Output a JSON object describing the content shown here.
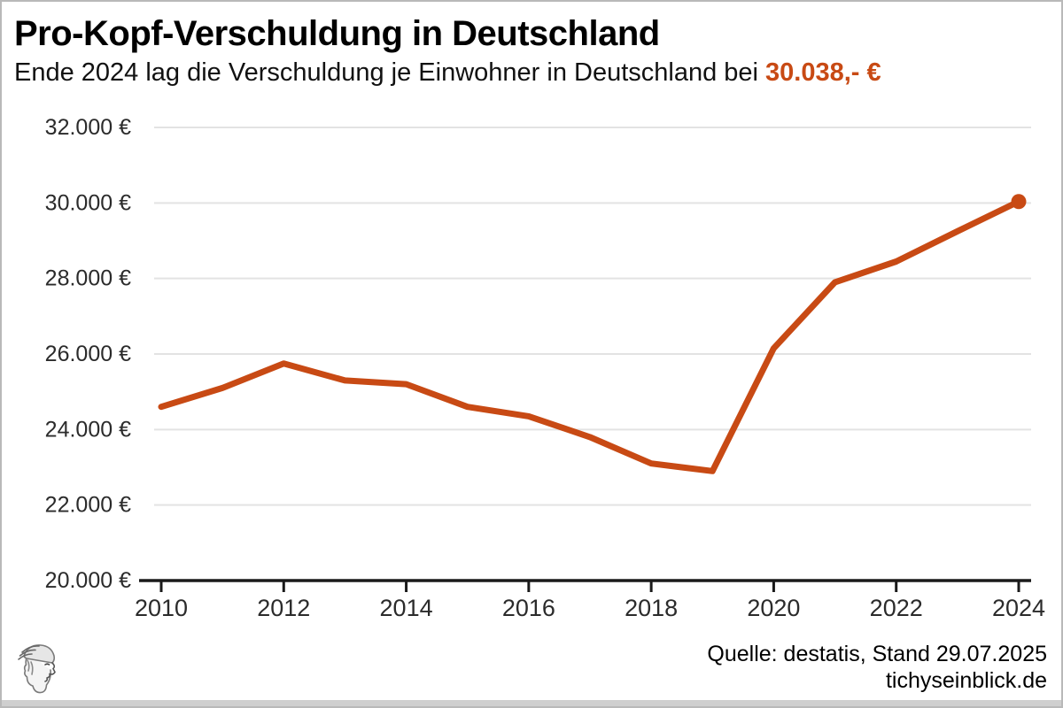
{
  "header": {
    "title": "Pro-Kopf-Verschuldung in Deutschland",
    "subtitle_prefix": "Ende 2024 lag die Verschuldung je Einwohner in Deutschland bei ",
    "subtitle_highlight": "30.038,- €"
  },
  "footer": {
    "source_line": "Quelle: destatis, Stand 29.07.2025",
    "site_line": "tichyseinblick.de",
    "logo": "hermes-head-engraving"
  },
  "colors": {
    "accent": "#c84a14",
    "grid": "#e3e3e3",
    "axis": "#1a1a1a",
    "tick_label": "#2b2b2b",
    "frame": "#b9b9b9",
    "bottom_bar": "#cfcfcf",
    "background": "#ffffff"
  },
  "chart_data": {
    "type": "line",
    "title": "Pro-Kopf-Verschuldung in Deutschland",
    "subtitle": "Ende 2024 lag die Verschuldung je Einwohner in Deutschland bei 30.038,- €",
    "xlabel": "",
    "ylabel": "",
    "unit": "€",
    "grid": "horizontal",
    "legend": "none",
    "line_color": "#c84a14",
    "line_width": 7,
    "end_marker": "dot",
    "x": [
      2010,
      2011,
      2012,
      2013,
      2014,
      2015,
      2016,
      2017,
      2018,
      2019,
      2020,
      2021,
      2022,
      2023,
      2024
    ],
    "values": [
      24600,
      25100,
      25750,
      25300,
      25200,
      24600,
      24350,
      23800,
      23100,
      22900,
      26150,
      27900,
      28450,
      29250,
      30038
    ],
    "final_value_label": "30.038,- €",
    "xlim": [
      2010,
      2024
    ],
    "ylim": [
      20000,
      32000
    ],
    "y_ticks": [
      {
        "value": 20000,
        "label": "20.000 €"
      },
      {
        "value": 22000,
        "label": "22.000 €"
      },
      {
        "value": 24000,
        "label": "24.000 €"
      },
      {
        "value": 26000,
        "label": "26.000 €"
      },
      {
        "value": 28000,
        "label": "28.000 €"
      },
      {
        "value": 30000,
        "label": "30.000 €"
      },
      {
        "value": 32000,
        "label": "32.000 €"
      }
    ],
    "x_ticks": [
      {
        "value": 2010,
        "label": "2010"
      },
      {
        "value": 2012,
        "label": "2012"
      },
      {
        "value": 2014,
        "label": "2014"
      },
      {
        "value": 2016,
        "label": "2016"
      },
      {
        "value": 2018,
        "label": "2018"
      },
      {
        "value": 2020,
        "label": "2020"
      },
      {
        "value": 2022,
        "label": "2022"
      },
      {
        "value": 2024,
        "label": "2024"
      }
    ]
  }
}
